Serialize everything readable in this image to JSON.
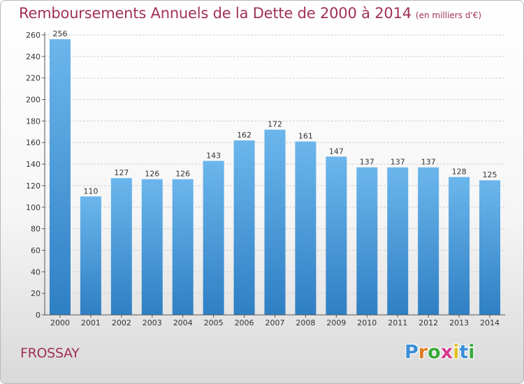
{
  "header": {
    "title": "Remboursements Annuels de la Dette de 2000 à 2014",
    "unit": "(en milliers d'€)"
  },
  "footer": {
    "city": "FROSSAY",
    "logo": {
      "letters": [
        "P",
        "r",
        "o",
        "x",
        "i",
        "t",
        "i"
      ],
      "colors": [
        "#3a8fd8",
        "#e07a1e",
        "#3aa83a",
        "#d43a8a",
        "#e0c01e",
        "#3a8fd8",
        "#3aa83a"
      ]
    }
  },
  "colors": {
    "bar_top": "#6bb6ec",
    "bar_bottom": "#2f7fc4",
    "axis": "#555555",
    "grid": "#d0d0d0",
    "text": "#333333",
    "accent": "#a0305a"
  },
  "chart_data": {
    "type": "bar",
    "title": "Remboursements Annuels de la Dette de 2000 à 2014",
    "categories": [
      "2000",
      "2001",
      "2002",
      "2003",
      "2004",
      "2005",
      "2006",
      "2007",
      "2008",
      "2009",
      "2010",
      "2011",
      "2012",
      "2013",
      "2014"
    ],
    "values": [
      256,
      110,
      127,
      126,
      126,
      143,
      162,
      172,
      161,
      147,
      137,
      137,
      137,
      128,
      125
    ],
    "ylim": [
      0,
      260
    ],
    "yticks": [
      0,
      20,
      40,
      60,
      80,
      100,
      120,
      140,
      160,
      180,
      200,
      220,
      240,
      260
    ],
    "grid": true,
    "data_labels": true
  }
}
